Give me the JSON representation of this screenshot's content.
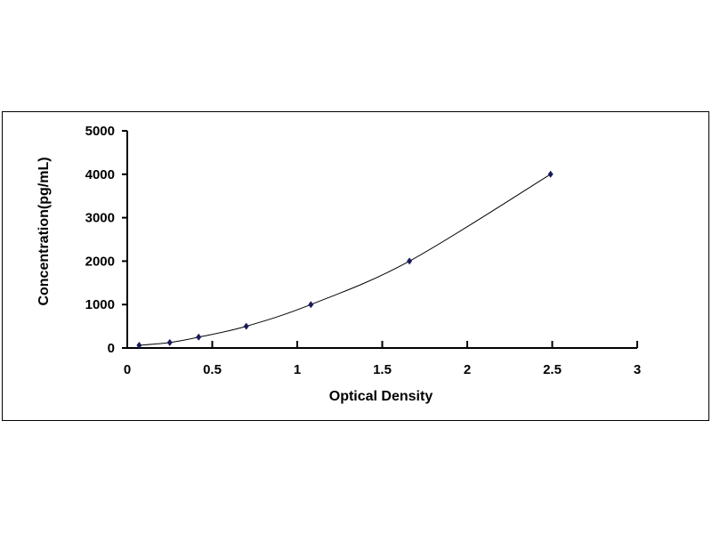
{
  "chart_data": {
    "type": "scatter",
    "title": "",
    "xlabel": "Optical Density",
    "ylabel": "Concentration(pg/mL)",
    "xlim": [
      0,
      3
    ],
    "ylim": [
      0,
      5000
    ],
    "xticks": [
      "0",
      "0.5",
      "1",
      "1.5",
      "2",
      "2.5",
      "3"
    ],
    "yticks": [
      "0",
      "1000",
      "2000",
      "3000",
      "4000",
      "5000"
    ],
    "grid": false,
    "legend": "none",
    "fit_line": "smooth curve",
    "marker": "diamond",
    "colors": {
      "marker": "#1a1a5e",
      "line": "#000000"
    },
    "series": [
      {
        "x": [
          0.07,
          0.25,
          0.42,
          0.7,
          1.08,
          1.66,
          2.49
        ],
        "y": [
          62.5,
          125,
          250,
          500,
          1000,
          2000,
          4000
        ]
      }
    ]
  }
}
